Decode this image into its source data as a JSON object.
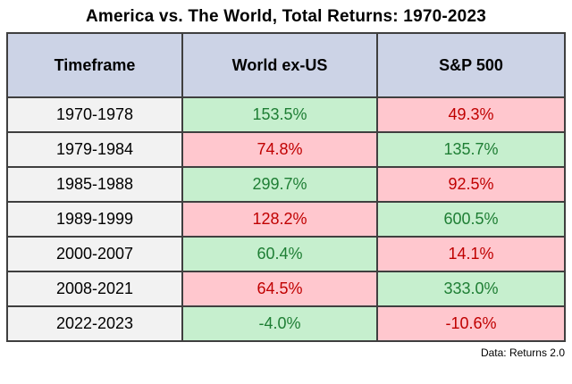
{
  "title": "America vs. The World, Total Returns: 1970-2023",
  "footer": "Data: Returns 2.0",
  "colors": {
    "header_bg": "#ccd3e6",
    "timeframe_bg": "#f2f2f2",
    "win_bg": "#c6efce",
    "lose_bg": "#ffc7ce",
    "win_text": "#1e7e34",
    "lose_text": "#c00000",
    "border": "#3f3f3f"
  },
  "table": {
    "headers": [
      "Timeframe",
      "World ex-US",
      "S&P 500"
    ],
    "rows": [
      {
        "timeframe": "1970-1978",
        "world": "153.5%",
        "sp": "49.3%",
        "winner": "world"
      },
      {
        "timeframe": "1979-1984",
        "world": "74.8%",
        "sp": "135.7%",
        "winner": "sp"
      },
      {
        "timeframe": "1985-1988",
        "world": "299.7%",
        "sp": "92.5%",
        "winner": "world"
      },
      {
        "timeframe": "1989-1999",
        "world": "128.2%",
        "sp": "600.5%",
        "winner": "sp"
      },
      {
        "timeframe": "2000-2007",
        "world": "60.4%",
        "sp": "14.1%",
        "winner": "world"
      },
      {
        "timeframe": "2008-2021",
        "world": "64.5%",
        "sp": "333.0%",
        "winner": "sp"
      },
      {
        "timeframe": "2022-2023",
        "world": "-4.0%",
        "sp": "-10.6%",
        "winner": "world"
      }
    ]
  },
  "chart_data": {
    "type": "table",
    "title": "America vs. The World, Total Returns: 1970-2023",
    "categories": [
      "1970-1978",
      "1979-1984",
      "1985-1988",
      "1989-1999",
      "2000-2007",
      "2008-2021",
      "2022-2023"
    ],
    "series": [
      {
        "name": "World ex-US",
        "values": [
          153.5,
          74.8,
          299.7,
          128.2,
          60.4,
          64.5,
          -4.0
        ]
      },
      {
        "name": "S&P 500",
        "values": [
          49.3,
          135.7,
          92.5,
          600.5,
          14.1,
          333.0,
          -10.6
        ]
      }
    ],
    "value_unit": "%",
    "highlight_rule": "higher value per row shaded green, lower shaded pink",
    "annotations": [
      "Data: Returns 2.0"
    ]
  }
}
